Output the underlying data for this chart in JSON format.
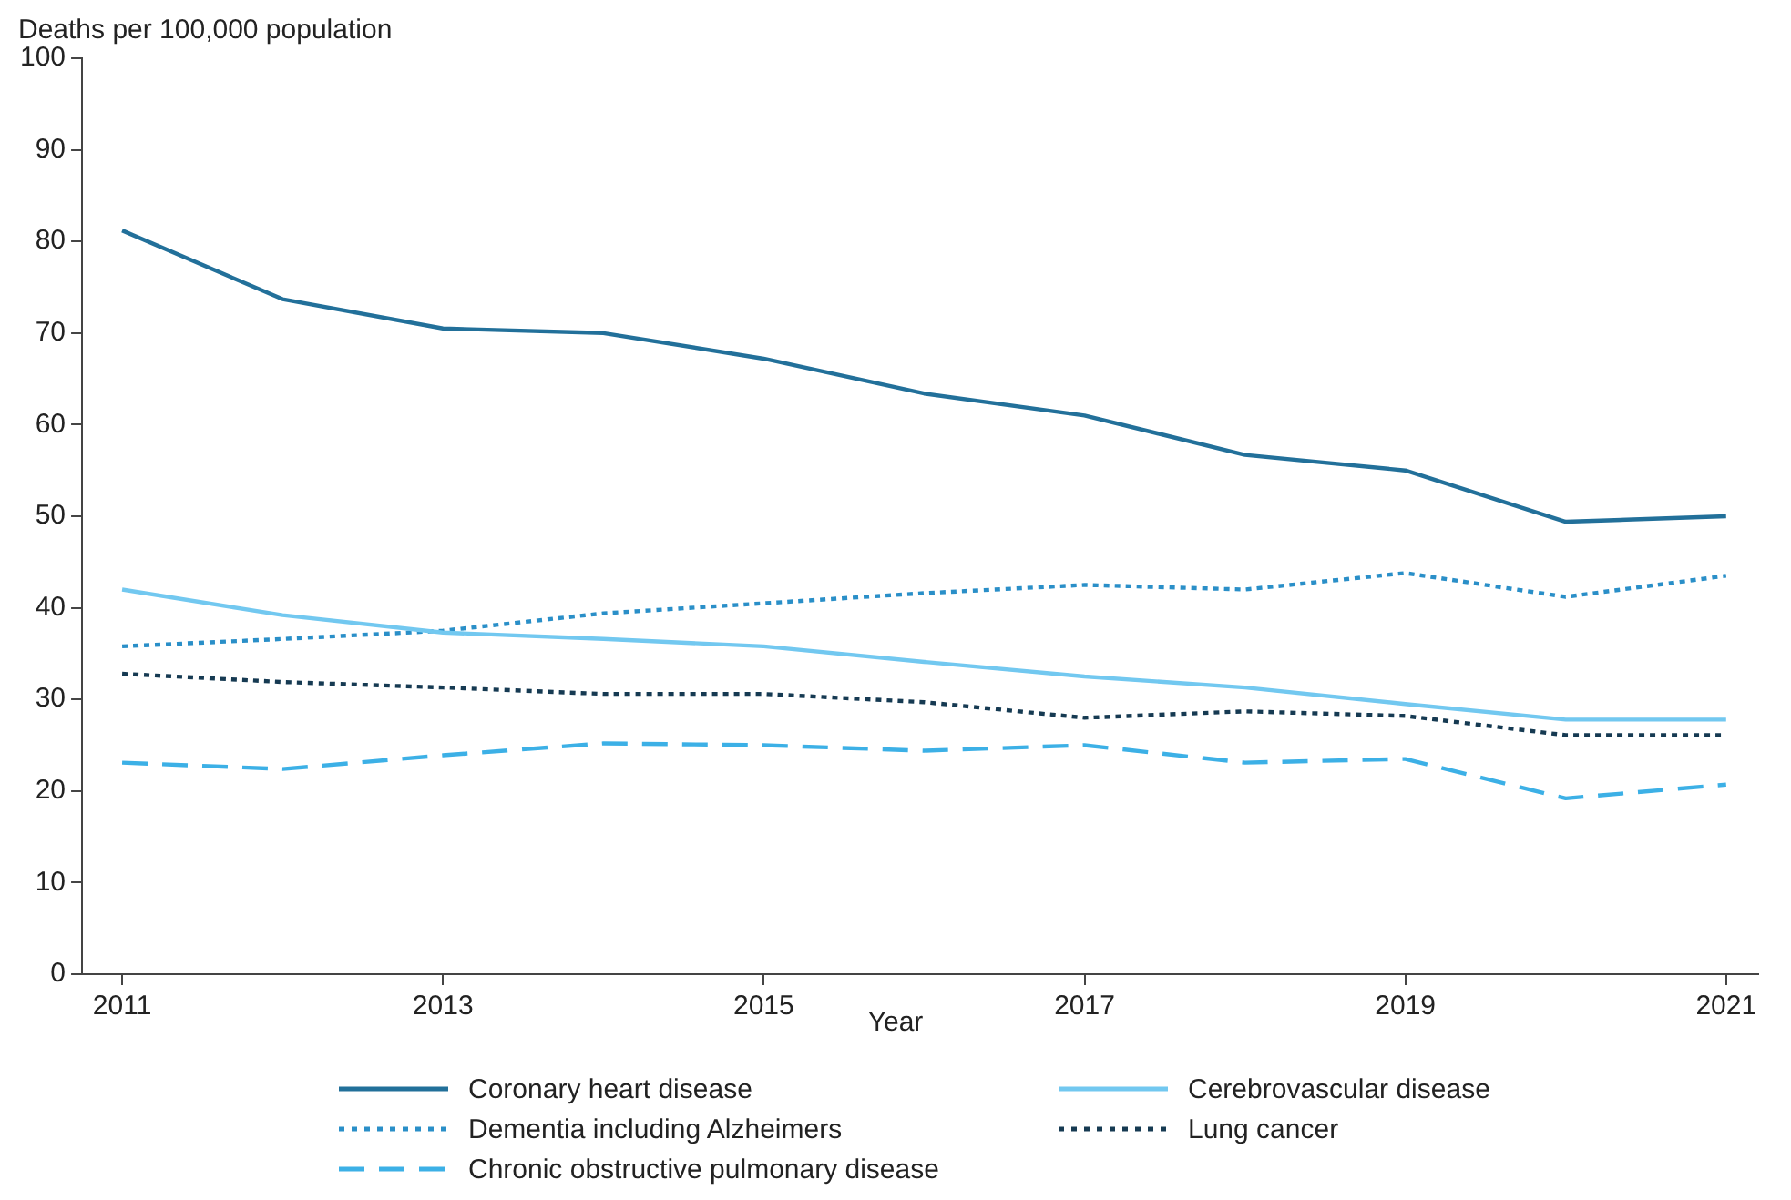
{
  "chart_data": {
    "type": "line",
    "ylabel": "Deaths per 100,000 population",
    "xlabel": "Year",
    "x": [
      2011,
      2012,
      2013,
      2014,
      2015,
      2016,
      2017,
      2018,
      2019,
      2020,
      2021
    ],
    "xlim": [
      2010.75,
      2021.2
    ],
    "xticks": [
      2011,
      2013,
      2015,
      2017,
      2019,
      2021
    ],
    "ylim": [
      0,
      100
    ],
    "yticks": [
      0,
      10,
      20,
      30,
      40,
      50,
      60,
      70,
      80,
      90,
      100
    ],
    "grid": false,
    "legend": "bottom",
    "marker": "none",
    "series": [
      {
        "name": "Coronary heart disease",
        "color": "#22709a",
        "line_style": "solid",
        "values": [
          81.2,
          73.7,
          70.5,
          70.0,
          67.2,
          63.4,
          61.0,
          56.7,
          55.0,
          49.4,
          50.0
        ]
      },
      {
        "name": "Cerebrovascular disease",
        "color": "#72c8f0",
        "line_style": "solid",
        "values": [
          42.0,
          39.2,
          37.3,
          36.6,
          35.8,
          34.1,
          32.5,
          31.3,
          29.5,
          27.8,
          27.8
        ]
      },
      {
        "name": "Dementia including Alzheimers",
        "color": "#2a8fc8",
        "line_style": "dotted",
        "values": [
          35.8,
          36.6,
          37.5,
          39.4,
          40.5,
          41.6,
          42.5,
          42.0,
          43.8,
          41.2,
          43.5
        ]
      },
      {
        "name": "Lung cancer",
        "color": "#163a52",
        "line_style": "dotted",
        "values": [
          32.8,
          31.9,
          31.3,
          30.6,
          30.6,
          29.7,
          28.0,
          28.7,
          28.2,
          26.1,
          26.1
        ]
      },
      {
        "name": "Chronic obstructive pulmonary disease",
        "color": "#3cb0e6",
        "line_style": "dashed",
        "values": [
          23.1,
          22.4,
          23.9,
          25.2,
          25.0,
          24.4,
          25.0,
          23.1,
          23.5,
          19.2,
          20.7
        ]
      }
    ]
  }
}
